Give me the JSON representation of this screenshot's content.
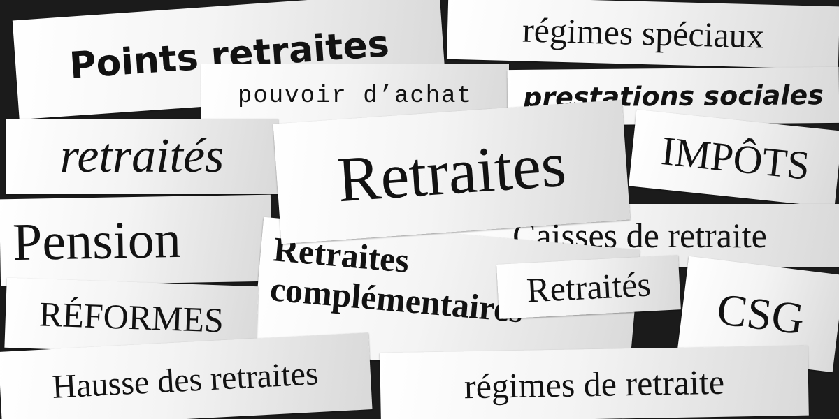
{
  "collage": {
    "background_color": "#1b1b1b",
    "paper_color": "#f2f2f2",
    "ink_color": "#121212",
    "clippings": [
      {
        "id": "points-retraites",
        "text": "Points retraites"
      },
      {
        "id": "regimes-speciaux",
        "text": "régimes spéciaux"
      },
      {
        "id": "pouvoir-dachat",
        "text": "pouvoir d’achat"
      },
      {
        "id": "prestations-sociales",
        "text": "prestations sociales"
      },
      {
        "id": "retraites-italic",
        "text": "retraités"
      },
      {
        "id": "retraites-big",
        "text": "Retraites"
      },
      {
        "id": "impots",
        "text": "IMPÔTS"
      },
      {
        "id": "pension",
        "text": "Pension"
      },
      {
        "id": "caisses-de-retraite",
        "text": "Caisses de retraite"
      },
      {
        "id": "retraites-complementaires-line1",
        "text": "Retraites"
      },
      {
        "id": "retraites-complementaires-line2",
        "text": "complémentaires"
      },
      {
        "id": "retraites-accent",
        "text": "Retraités"
      },
      {
        "id": "csg",
        "text": "CSG"
      },
      {
        "id": "reformes",
        "text": "RÉFORMES"
      },
      {
        "id": "hausse-des-retraites",
        "text": "Hausse des retraites"
      },
      {
        "id": "regimes-de-retraite",
        "text": "régimes de retraite"
      }
    ]
  }
}
